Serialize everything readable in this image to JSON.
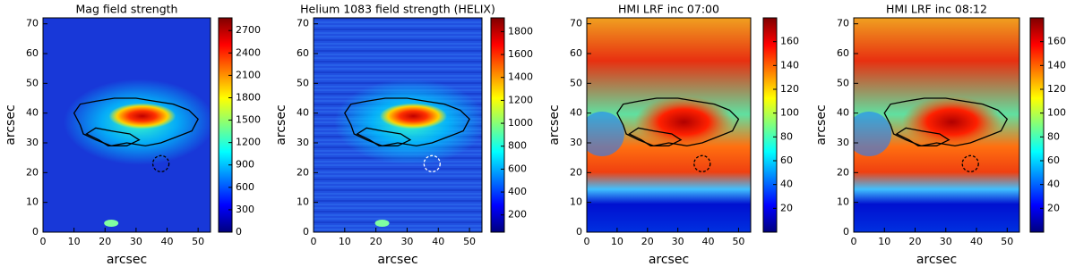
{
  "chart_data": [
    {
      "type": "heatmap",
      "title": "Mag field strength",
      "xlabel": "arcsec",
      "ylabel": "arcsec",
      "xlim": [
        0,
        54
      ],
      "ylim": [
        0,
        72
      ],
      "xticks": [
        0,
        10,
        20,
        30,
        40,
        50
      ],
      "yticks": [
        0,
        10,
        20,
        30,
        40,
        50,
        60,
        70
      ],
      "colorbar": {
        "lim": [
          0,
          2870
        ],
        "ticks": [
          0,
          300,
          600,
          900,
          1200,
          1500,
          1800,
          2100,
          2400,
          2700
        ]
      },
      "colormap": [
        "#00007f",
        "#0000ff",
        "#007fff",
        "#00ffff",
        "#7fff7f",
        "#ffff00",
        "#ff7f00",
        "#ff0000",
        "#7f0000"
      ]
    },
    {
      "type": "heatmap",
      "title": "Helium 1083 field strength (HELIX)",
      "xlabel": "arcsec",
      "ylabel": "arcsec",
      "xlim": [
        0,
        54
      ],
      "ylim": [
        0,
        72
      ],
      "xticks": [
        0,
        10,
        20,
        30,
        40,
        50
      ],
      "yticks": [
        0,
        10,
        20,
        30,
        40,
        50,
        60,
        70
      ],
      "colorbar": {
        "lim": [
          50,
          1920
        ],
        "ticks": [
          200,
          400,
          600,
          800,
          1000,
          1200,
          1400,
          1600,
          1800
        ]
      },
      "colormap": [
        "#00007f",
        "#0000ff",
        "#007fff",
        "#00ffff",
        "#7fff7f",
        "#ffff00",
        "#ff7f00",
        "#ff0000",
        "#7f0000"
      ]
    },
    {
      "type": "heatmap",
      "title": "HMI LRF inc 07:00",
      "xlabel": "arcsec",
      "ylabel": "arcsec",
      "xlim": [
        0,
        54
      ],
      "ylim": [
        0,
        72
      ],
      "xticks": [
        0,
        10,
        20,
        30,
        40,
        50
      ],
      "yticks": [
        0,
        10,
        20,
        30,
        40,
        50,
        60,
        70
      ],
      "colorbar": {
        "lim": [
          0,
          180
        ],
        "ticks": [
          20,
          40,
          60,
          80,
          100,
          120,
          140,
          160
        ]
      },
      "colormap": [
        "#00007f",
        "#0000ff",
        "#007fff",
        "#00ffff",
        "#7fff7f",
        "#ffff00",
        "#ff7f00",
        "#ff0000",
        "#7f0000"
      ]
    },
    {
      "type": "heatmap",
      "title": "HMI LRF inc 08:12",
      "xlabel": "arcsec",
      "ylabel": "arcsec",
      "xlim": [
        0,
        54
      ],
      "ylim": [
        0,
        72
      ],
      "xticks": [
        0,
        10,
        20,
        30,
        40,
        50
      ],
      "yticks": [
        0,
        10,
        20,
        30,
        40,
        50,
        60,
        70
      ],
      "colorbar": {
        "lim": [
          0,
          180
        ],
        "ticks": [
          20,
          40,
          60,
          80,
          100,
          120,
          140,
          160
        ]
      },
      "colormap": [
        "#00007f",
        "#0000ff",
        "#007fff",
        "#00ffff",
        "#7fff7f",
        "#ffff00",
        "#ff7f00",
        "#ff0000",
        "#7f0000"
      ]
    }
  ]
}
